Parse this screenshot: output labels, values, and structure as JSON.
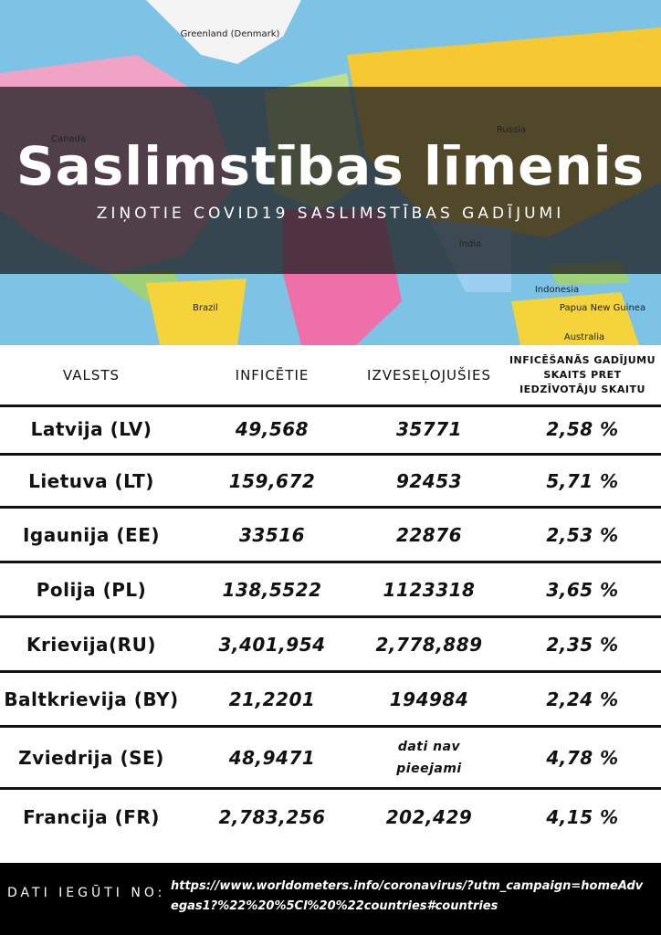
{
  "header": {
    "title": "Saslimstības līmenis",
    "subtitle": "ZIŅOTIE COVID19 SASLIMSTĪBAS GADĪJUMI"
  },
  "map": {
    "labels": [
      "Greenland (Denmark)",
      "Canada",
      "Russia",
      "Brazil",
      "Australia",
      "India",
      "Indonesia",
      "Papua New Guinea"
    ]
  },
  "table": {
    "columns": [
      "VALSTS",
      "INFICĒTIE",
      "IZVESEĻOJUŠIES",
      "INFICĒŠANĀS GADĪJUMU SKAITS PRET IEDZĪVOTĀJU SKAITU"
    ],
    "rows": [
      [
        "Latvija (LV)",
        "49,568",
        "35771",
        "2,58 %"
      ],
      [
        "Lietuva (LT)",
        "159,672",
        "92453",
        "5,71 %"
      ],
      [
        "Igaunija (EE)",
        "33516",
        "22876",
        "2,53 %"
      ],
      [
        "Polija (PL)",
        "138,5522",
        "1123318",
        "3,65 %"
      ],
      [
        "Krievija(RU)",
        "3,401,954",
        "2,778,889",
        "2,35 %"
      ],
      [
        "Baltkrievija (BY)",
        "21,2201",
        "194984",
        "2,24 %"
      ],
      [
        "Zviedrija (SE)",
        "48,9471",
        "dati nav pieejami",
        "4,78 %"
      ],
      [
        "Francija (FR)",
        "2,783,256",
        "202,429",
        "4,15 %"
      ]
    ]
  },
  "footer": {
    "label": "DATI IEGŪTI NO:",
    "url": "https://www.worldometers.info/coronavirus/?utm_campaign=homeAdvegas1?%22%20%5Cl%20%22countries#countries"
  }
}
